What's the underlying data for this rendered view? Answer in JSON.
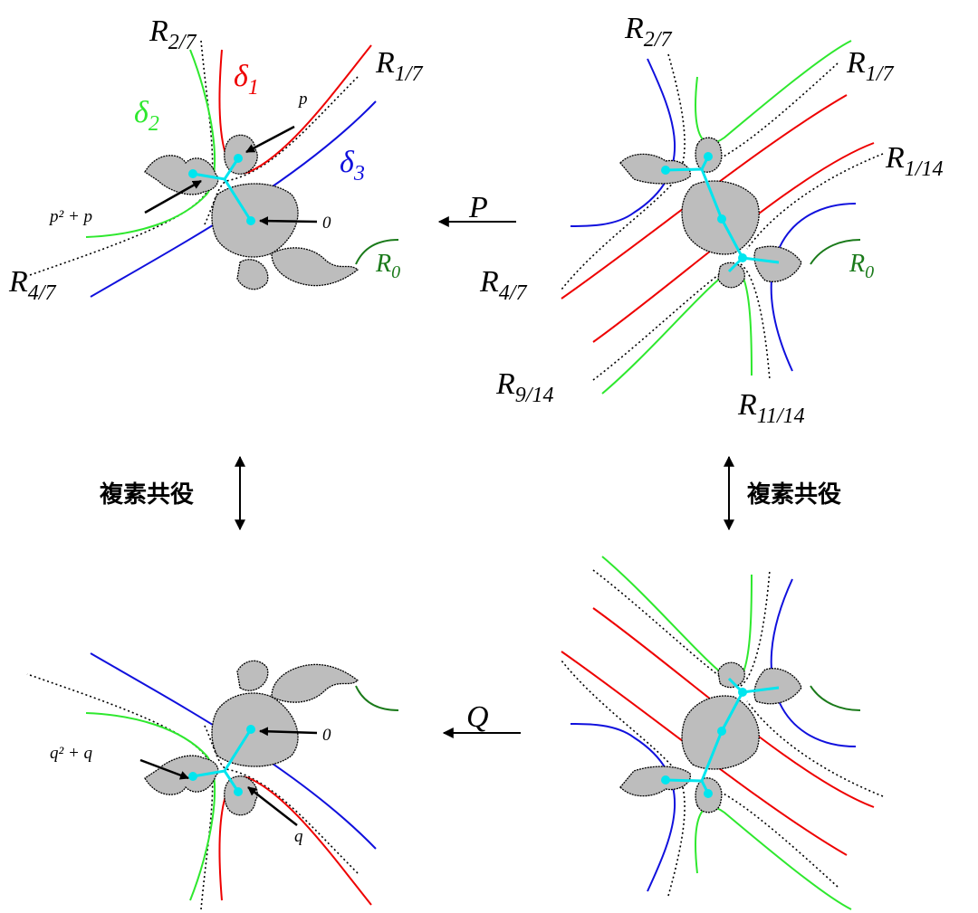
{
  "top_left": {
    "labels": [
      {
        "text": "R",
        "sub": "2/7"
      },
      {
        "text": "δ",
        "sub": "1"
      },
      {
        "text": "R",
        "sub": "1/7"
      },
      {
        "text": "δ",
        "sub": "2"
      },
      {
        "text": "δ",
        "sub": "3"
      },
      {
        "text": "R",
        "sub": "4/7"
      },
      {
        "text": "R",
        "sub": "0"
      }
    ],
    "points": [
      "p",
      "p² + p",
      "0"
    ]
  },
  "map_P": "P",
  "top_right": {
    "labels": [
      {
        "text": "R",
        "sub": "2/7"
      },
      {
        "text": "R",
        "sub": "1/7"
      },
      {
        "text": "R",
        "sub": "1/14"
      },
      {
        "text": "R",
        "sub": "4/7"
      },
      {
        "text": "R",
        "sub": "0"
      },
      {
        "text": "R",
        "sub": "9/14"
      },
      {
        "text": "R",
        "sub": "11/14"
      }
    ]
  },
  "conjugation_left": "複素共役",
  "conjugation_right": "複素共役",
  "map_Q": "Q",
  "bottom_left": {
    "points": [
      "q² + q",
      "0",
      "q"
    ]
  }
}
